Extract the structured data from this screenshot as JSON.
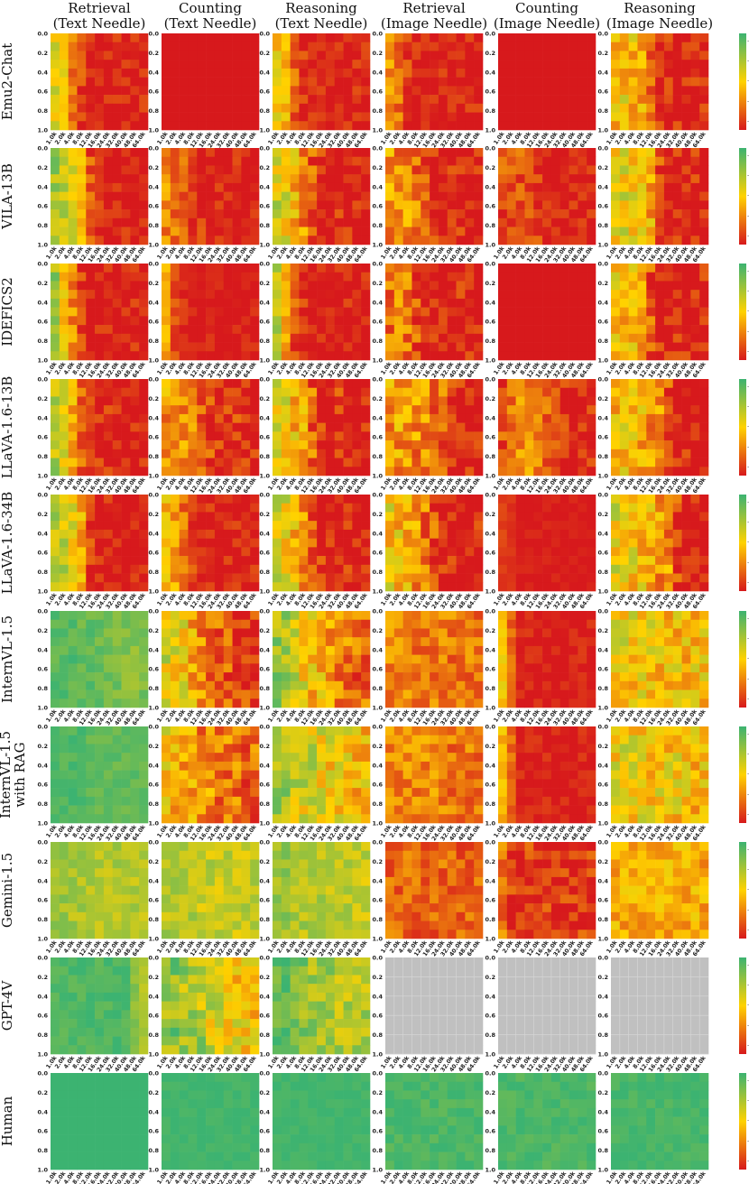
{
  "chart_data": {
    "type": "heatmap",
    "columns": [
      [
        "Retrieval",
        "(Text Needle)"
      ],
      [
        "Counting",
        "(Text Needle)"
      ],
      [
        "Reasoning",
        "(Text Needle)"
      ],
      [
        "Retrieval",
        "(Image Needle)"
      ],
      [
        "Counting",
        "(Image Needle)"
      ],
      [
        "Reasoning",
        "(Image Needle)"
      ]
    ],
    "rows": [
      [
        "Emu2-Chat"
      ],
      [
        "VILA-13B"
      ],
      [
        "IDEFICS2"
      ],
      [
        "LLaVA-1.6-13B"
      ],
      [
        "LLaVA-1.6-34B"
      ],
      [
        "InternVL-1.5"
      ],
      [
        "InternVL-1.5",
        "with RAG"
      ],
      [
        "Gemini-1.5"
      ],
      [
        "GPT-4V"
      ],
      [
        "Human"
      ]
    ],
    "x_tick_labels": [
      "1.0k",
      "2.0k",
      "4.0k",
      "8.0k",
      "12.0k",
      "16.0k",
      "24.0k",
      "32.0k",
      "40.0k",
      "48.0k",
      "64.0k"
    ],
    "y_tick_labels": [
      "0.0",
      "0.2",
      "0.4",
      "0.6",
      "0.8",
      "1.0"
    ],
    "grid_rows": 11,
    "colorscale": {
      "low": "#d7191c",
      "mid": "#ffd200",
      "high": "#3cb371",
      "missing": "#c0c0c0"
    },
    "colorbar_ticks": [
      "-",
      "-",
      "-",
      "-",
      "-"
    ],
    "panels": [
      {
        "row": 0,
        "col": 0,
        "profile": [
          0.55,
          0.45,
          0.25,
          0.1,
          0,
          0,
          0,
          0,
          0,
          0,
          0
        ],
        "noise": 0.15
      },
      {
        "row": 0,
        "col": 1,
        "profile": [
          0,
          0,
          0,
          0,
          0,
          0,
          0,
          0,
          0,
          0,
          0
        ],
        "noise": 0.02
      },
      {
        "row": 0,
        "col": 2,
        "profile": [
          0.5,
          0.4,
          0.2,
          0.05,
          0,
          0,
          0,
          0,
          0,
          0,
          0
        ],
        "noise": 0.15
      },
      {
        "row": 0,
        "col": 3,
        "profile": [
          0.35,
          0.25,
          0.1,
          0,
          0,
          0,
          0,
          0,
          0,
          0,
          0
        ],
        "noise": 0.15
      },
      {
        "row": 0,
        "col": 4,
        "profile": [
          0,
          0,
          0,
          0,
          0,
          0,
          0,
          0,
          0,
          0,
          0
        ],
        "noise": 0.02
      },
      {
        "row": 0,
        "col": 5,
        "profile": [
          0.45,
          0.5,
          0.45,
          0.35,
          0.2,
          0.05,
          0,
          0,
          0,
          0,
          0
        ],
        "noise": 0.2
      },
      {
        "row": 1,
        "col": 0,
        "profile": [
          0.75,
          0.7,
          0.6,
          0.4,
          0.15,
          0.05,
          0,
          0,
          0,
          0,
          0
        ],
        "noise": 0.15
      },
      {
        "row": 1,
        "col": 1,
        "profile": [
          0.3,
          0.25,
          0.2,
          0.1,
          0.05,
          0,
          0,
          0,
          0,
          0,
          0
        ],
        "noise": 0.15
      },
      {
        "row": 1,
        "col": 2,
        "profile": [
          0.6,
          0.55,
          0.45,
          0.3,
          0.15,
          0.05,
          0,
          0,
          0,
          0,
          0
        ],
        "noise": 0.2
      },
      {
        "row": 1,
        "col": 3,
        "profile": [
          0.35,
          0.3,
          0.3,
          0.25,
          0.2,
          0.05,
          0,
          0,
          0,
          0,
          0
        ],
        "noise": 0.2
      },
      {
        "row": 1,
        "col": 4,
        "profile": [
          0.15,
          0.15,
          0.15,
          0.1,
          0.1,
          0,
          0,
          0,
          0,
          0,
          0
        ],
        "noise": 0.15
      },
      {
        "row": 1,
        "col": 5,
        "profile": [
          0.55,
          0.55,
          0.5,
          0.45,
          0.4,
          0.1,
          0,
          0,
          0,
          0,
          0
        ],
        "noise": 0.2
      },
      {
        "row": 2,
        "col": 0,
        "profile": [
          0.75,
          0.5,
          0.3,
          0.1,
          0,
          0,
          0,
          0,
          0,
          0,
          0
        ],
        "noise": 0.15
      },
      {
        "row": 2,
        "col": 1,
        "profile": [
          0.4,
          0.15,
          0.05,
          0,
          0,
          0,
          0,
          0,
          0,
          0,
          0
        ],
        "noise": 0.1
      },
      {
        "row": 2,
        "col": 2,
        "profile": [
          0.65,
          0.35,
          0.15,
          0.05,
          0,
          0,
          0,
          0,
          0,
          0,
          0
        ],
        "noise": 0.15
      },
      {
        "row": 2,
        "col": 3,
        "profile": [
          0.25,
          0.25,
          0.25,
          0.15,
          0,
          0,
          0,
          0,
          0,
          0,
          0
        ],
        "noise": 0.2
      },
      {
        "row": 2,
        "col": 4,
        "profile": [
          0,
          0,
          0,
          0,
          0,
          0,
          0,
          0,
          0,
          0,
          0
        ],
        "noise": 0.02
      },
      {
        "row": 2,
        "col": 5,
        "profile": [
          0.5,
          0.45,
          0.4,
          0.35,
          0.2,
          0,
          0,
          0,
          0,
          0,
          0
        ],
        "noise": 0.2
      },
      {
        "row": 3,
        "col": 0,
        "profile": [
          0.7,
          0.6,
          0.4,
          0.2,
          0.1,
          0.05,
          0.05,
          0,
          0,
          0,
          0
        ],
        "noise": 0.15
      },
      {
        "row": 3,
        "col": 1,
        "profile": [
          0.35,
          0.35,
          0.3,
          0.25,
          0.2,
          0.1,
          0.05,
          0.05,
          0.05,
          0,
          0
        ],
        "noise": 0.2
      },
      {
        "row": 3,
        "col": 2,
        "profile": [
          0.6,
          0.55,
          0.45,
          0.35,
          0.2,
          0.1,
          0.05,
          0.05,
          0,
          0,
          0
        ],
        "noise": 0.2
      },
      {
        "row": 3,
        "col": 3,
        "profile": [
          0.35,
          0.35,
          0.35,
          0.3,
          0.3,
          0.25,
          0.2,
          0.05,
          0,
          0,
          0
        ],
        "noise": 0.2
      },
      {
        "row": 3,
        "col": 4,
        "profile": [
          0.15,
          0.25,
          0.3,
          0.3,
          0.25,
          0.2,
          0.15,
          0.1,
          0.05,
          0.05,
          0.05
        ],
        "noise": 0.15
      },
      {
        "row": 3,
        "col": 5,
        "profile": [
          0.45,
          0.45,
          0.45,
          0.4,
          0.35,
          0.3,
          0.15,
          0,
          0,
          0,
          0
        ],
        "noise": 0.2
      },
      {
        "row": 4,
        "col": 0,
        "profile": [
          0.7,
          0.65,
          0.55,
          0.4,
          0.1,
          0,
          0,
          0,
          0,
          0,
          0
        ],
        "noise": 0.15
      },
      {
        "row": 4,
        "col": 1,
        "profile": [
          0.45,
          0.35,
          0.25,
          0.1,
          0,
          0,
          0,
          0,
          0,
          0,
          0
        ],
        "noise": 0.15
      },
      {
        "row": 4,
        "col": 2,
        "profile": [
          0.6,
          0.55,
          0.45,
          0.3,
          0.15,
          0.05,
          0,
          0,
          0,
          0,
          0
        ],
        "noise": 0.2
      },
      {
        "row": 4,
        "col": 3,
        "profile": [
          0.5,
          0.45,
          0.4,
          0.35,
          0.25,
          0.15,
          0,
          0,
          0,
          0,
          0
        ],
        "noise": 0.2
      },
      {
        "row": 4,
        "col": 4,
        "profile": [
          0.1,
          0.05,
          0,
          0,
          0,
          0,
          0,
          0,
          0,
          0,
          0
        ],
        "noise": 0.05
      },
      {
        "row": 4,
        "col": 5,
        "profile": [
          0.55,
          0.5,
          0.5,
          0.45,
          0.4,
          0.35,
          0.3,
          0.1,
          0,
          0,
          0
        ],
        "noise": 0.2
      },
      {
        "row": 5,
        "col": 0,
        "profile": [
          0.92,
          0.92,
          0.92,
          0.9,
          0.9,
          0.88,
          0.85,
          0.85,
          0.82,
          0.8,
          0.85
        ],
        "noise": 0.08
      },
      {
        "row": 5,
        "col": 1,
        "profile": [
          0.6,
          0.55,
          0.5,
          0.4,
          0.3,
          0.25,
          0.2,
          0.15,
          0.1,
          0.1,
          0.05
        ],
        "noise": 0.2
      },
      {
        "row": 5,
        "col": 2,
        "profile": [
          0.75,
          0.7,
          0.65,
          0.55,
          0.45,
          0.4,
          0.35,
          0.3,
          0.25,
          0.2,
          0.2
        ],
        "noise": 0.2
      },
      {
        "row": 5,
        "col": 3,
        "profile": [
          0.3,
          0.3,
          0.3,
          0.25,
          0.25,
          0.25,
          0.25,
          0.25,
          0.25,
          0.25,
          0.25
        ],
        "noise": 0.15
      },
      {
        "row": 5,
        "col": 4,
        "profile": [
          0.5,
          0.2,
          0,
          0,
          0,
          0,
          0,
          0,
          0,
          0,
          0
        ],
        "noise": 0.1
      },
      {
        "row": 5,
        "col": 5,
        "profile": [
          0.55,
          0.55,
          0.5,
          0.5,
          0.5,
          0.45,
          0.45,
          0.45,
          0.45,
          0.45,
          0.45
        ],
        "noise": 0.2
      },
      {
        "row": 6,
        "col": 0,
        "profile": [
          0.95,
          0.95,
          0.95,
          0.95,
          0.9,
          0.9,
          0.9,
          0.9,
          0.9,
          0.9,
          0.9
        ],
        "noise": 0.06
      },
      {
        "row": 6,
        "col": 1,
        "profile": [
          0.5,
          0.45,
          0.4,
          0.35,
          0.3,
          0.3,
          0.25,
          0.25,
          0.25,
          0.2,
          0.2
        ],
        "noise": 0.2
      },
      {
        "row": 6,
        "col": 2,
        "profile": [
          0.7,
          0.7,
          0.65,
          0.6,
          0.6,
          0.55,
          0.5,
          0.5,
          0.5,
          0.45,
          0.45
        ],
        "noise": 0.2
      },
      {
        "row": 6,
        "col": 3,
        "profile": [
          0.3,
          0.3,
          0.3,
          0.3,
          0.3,
          0.3,
          0.3,
          0.25,
          0.25,
          0.25,
          0.25
        ],
        "noise": 0.15
      },
      {
        "row": 6,
        "col": 4,
        "profile": [
          0.45,
          0.2,
          0,
          0,
          0,
          0,
          0,
          0,
          0,
          0,
          0
        ],
        "noise": 0.1
      },
      {
        "row": 6,
        "col": 5,
        "profile": [
          0.55,
          0.55,
          0.5,
          0.5,
          0.5,
          0.5,
          0.5,
          0.5,
          0.45,
          0.45,
          0.45
        ],
        "noise": 0.2
      },
      {
        "row": 7,
        "col": 0,
        "profile": [
          0.75,
          0.75,
          0.72,
          0.72,
          0.7,
          0.7,
          0.7,
          0.7,
          0.7,
          0.7,
          0.7
        ],
        "noise": 0.1
      },
      {
        "row": 7,
        "col": 1,
        "profile": [
          0.7,
          0.7,
          0.7,
          0.68,
          0.65,
          0.65,
          0.65,
          0.65,
          0.65,
          0.65,
          0.65
        ],
        "noise": 0.12
      },
      {
        "row": 7,
        "col": 2,
        "profile": [
          0.75,
          0.75,
          0.7,
          0.7,
          0.7,
          0.7,
          0.68,
          0.68,
          0.68,
          0.68,
          0.65
        ],
        "noise": 0.12
      },
      {
        "row": 7,
        "col": 3,
        "profile": [
          0.2,
          0.2,
          0.2,
          0.2,
          0.2,
          0.2,
          0.2,
          0.2,
          0.2,
          0.2,
          0.2
        ],
        "noise": 0.15
      },
      {
        "row": 7,
        "col": 4,
        "profile": [
          0.25,
          0.1,
          0.1,
          0.1,
          0.1,
          0.1,
          0.1,
          0.1,
          0.1,
          0.1,
          0.1
        ],
        "noise": 0.15
      },
      {
        "row": 7,
        "col": 5,
        "profile": [
          0.4,
          0.4,
          0.4,
          0.4,
          0.4,
          0.4,
          0.4,
          0.4,
          0.4,
          0.4,
          0.4
        ],
        "noise": 0.15
      },
      {
        "row": 8,
        "col": 0,
        "profile": [
          0.95,
          0.95,
          0.95,
          0.95,
          0.95,
          0.95,
          0.95,
          0.95,
          0.95,
          0.8,
          0.7
        ],
        "noise": 0.06
      },
      {
        "row": 8,
        "col": 1,
        "profile": [
          0.8,
          0.8,
          0.75,
          0.7,
          0.7,
          0.6,
          0.6,
          0.55,
          0.5,
          0.45,
          0.45
        ],
        "noise": 0.2
      },
      {
        "row": 8,
        "col": 2,
        "profile": [
          0.9,
          0.9,
          0.85,
          0.8,
          0.75,
          0.75,
          0.75,
          0.7,
          0.7,
          0.7,
          0.7
        ],
        "noise": 0.15
      },
      {
        "row": 8,
        "col": 3,
        "profile": null,
        "noise": 0
      },
      {
        "row": 8,
        "col": 4,
        "profile": null,
        "noise": 0
      },
      {
        "row": 8,
        "col": 5,
        "profile": null,
        "noise": 0
      },
      {
        "row": 9,
        "col": 0,
        "profile": [
          1,
          1,
          1,
          1,
          1,
          1,
          1,
          1,
          1,
          1,
          1
        ],
        "noise": 0
      },
      {
        "row": 9,
        "col": 1,
        "profile": [
          0.98,
          0.98,
          0.98,
          0.98,
          0.98,
          0.98,
          0.98,
          0.98,
          0.98,
          0.98,
          0.98
        ],
        "noise": 0.03
      },
      {
        "row": 9,
        "col": 2,
        "profile": [
          0.98,
          0.98,
          0.98,
          0.98,
          0.98,
          0.98,
          0.98,
          0.98,
          0.98,
          0.98,
          0.98
        ],
        "noise": 0.03
      },
      {
        "row": 9,
        "col": 3,
        "profile": [
          0.96,
          0.96,
          0.96,
          0.96,
          0.96,
          0.96,
          0.96,
          0.96,
          0.96,
          0.96,
          0.96
        ],
        "noise": 0.06
      },
      {
        "row": 9,
        "col": 4,
        "profile": [
          0.96,
          0.96,
          0.96,
          0.96,
          0.96,
          0.96,
          0.96,
          0.96,
          0.96,
          0.96,
          0.96
        ],
        "noise": 0.06
      },
      {
        "row": 9,
        "col": 5,
        "profile": [
          0.97,
          0.97,
          0.97,
          0.97,
          0.97,
          0.97,
          0.97,
          0.97,
          0.97,
          0.97,
          0.97
        ],
        "noise": 0.05
      }
    ]
  }
}
